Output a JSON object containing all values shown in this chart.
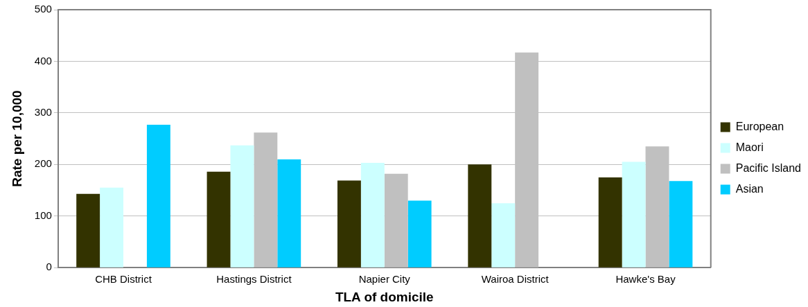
{
  "chart_data": {
    "type": "bar",
    "xlabel": "TLA of domicile",
    "ylabel": "Rate per 10,000",
    "categories": [
      "CHB District",
      "Hastings District",
      "Napier City",
      "Wairoa District",
      "Hawke's Bay"
    ],
    "series": [
      {
        "name": "European",
        "color": "#333300",
        "values": [
          143,
          186,
          169,
          200,
          175
        ]
      },
      {
        "name": "Maori",
        "color": "#ccffff",
        "values": [
          155,
          237,
          203,
          125,
          205
        ]
      },
      {
        "name": "Pacific Island",
        "color": "#c0c0c0",
        "values": [
          null,
          262,
          182,
          417,
          235
        ]
      },
      {
        "name": "Asian",
        "color": "#00ccff",
        "values": [
          277,
          210,
          130,
          null,
          168
        ]
      }
    ],
    "ylim": [
      0,
      500
    ],
    "yticks": [
      0,
      100,
      200,
      300,
      400,
      500
    ],
    "grid": "y",
    "legend": "right"
  }
}
